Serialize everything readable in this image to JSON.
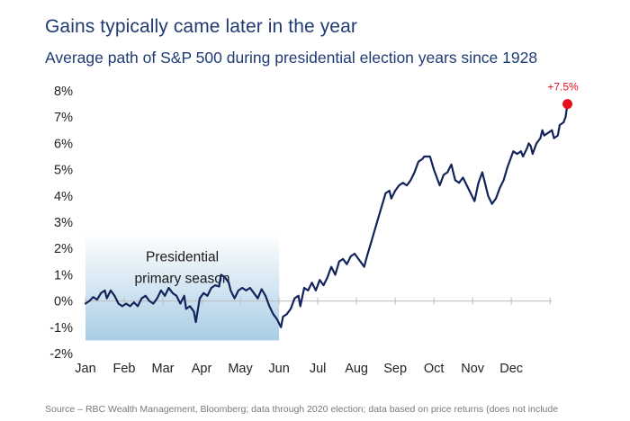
{
  "title": "Gains typically came later in the year",
  "subtitle": "Average path of S&P 500 during presidential election years since 1928",
  "source": "Source – RBC Wealth Management, Bloomberg; data through 2020 election; data based on price returns (does not include",
  "colors": {
    "line": "#13235b",
    "end_marker": "#e8101c",
    "end_label": "#e8101c",
    "text": "#1f3b73",
    "axis_text": "#222222",
    "shade_top": "#ffffff",
    "shade_bottom": "#a9cde5",
    "zero_line": "#bbbbbb"
  },
  "chart_data": {
    "type": "line",
    "title": "Gains typically came later in the year",
    "subtitle": "Average path of S&P 500 during presidential election years since 1928",
    "xlabel": "",
    "ylabel": "",
    "x_range": [
      0,
      12
    ],
    "ylim": [
      -2,
      8
    ],
    "yticks": [
      -2,
      -1,
      0,
      1,
      2,
      3,
      4,
      5,
      6,
      7,
      8
    ],
    "ytick_labels": [
      "-2%",
      "-1%",
      "0%",
      "1%",
      "2%",
      "3%",
      "4%",
      "5%",
      "6%",
      "7%",
      "8%"
    ],
    "months": [
      "Jan",
      "Feb",
      "Mar",
      "Apr",
      "May",
      "Jun",
      "Jul",
      "Aug",
      "Sep",
      "Oct",
      "Nov",
      "Dec"
    ],
    "shaded_region": {
      "x_start": 0,
      "x_end": 5,
      "y_start": -1.5,
      "y_end": 2.6,
      "label_lines": [
        "Presidential",
        "primary season"
      ]
    },
    "end_point": {
      "x": 11.85,
      "y": 7.5,
      "label": "+7.5%"
    },
    "series": [
      {
        "name": "S&P 500 average path",
        "points": [
          [
            0,
            -0.1
          ],
          [
            0.1,
            0.0
          ],
          [
            0.2,
            0.15
          ],
          [
            0.3,
            0.05
          ],
          [
            0.4,
            0.3
          ],
          [
            0.5,
            0.4
          ],
          [
            0.55,
            0.1
          ],
          [
            0.65,
            0.4
          ],
          [
            0.75,
            0.2
          ],
          [
            0.85,
            -0.1
          ],
          [
            0.95,
            -0.2
          ],
          [
            1.05,
            -0.1
          ],
          [
            1.15,
            -0.2
          ],
          [
            1.25,
            -0.05
          ],
          [
            1.35,
            -0.2
          ],
          [
            1.45,
            0.1
          ],
          [
            1.55,
            0.2
          ],
          [
            1.65,
            0.0
          ],
          [
            1.75,
            -0.1
          ],
          [
            1.85,
            0.1
          ],
          [
            1.95,
            0.4
          ],
          [
            2.05,
            0.2
          ],
          [
            2.15,
            0.5
          ],
          [
            2.25,
            0.3
          ],
          [
            2.35,
            0.2
          ],
          [
            2.45,
            -0.1
          ],
          [
            2.55,
            0.2
          ],
          [
            2.6,
            -0.3
          ],
          [
            2.7,
            -0.2
          ],
          [
            2.8,
            -0.4
          ],
          [
            2.85,
            -0.8
          ],
          [
            2.95,
            0.1
          ],
          [
            3.05,
            0.3
          ],
          [
            3.15,
            0.2
          ],
          [
            3.25,
            0.5
          ],
          [
            3.35,
            0.6
          ],
          [
            3.45,
            0.55
          ],
          [
            3.5,
            1.0
          ],
          [
            3.6,
            0.9
          ],
          [
            3.7,
            0.7
          ],
          [
            3.75,
            0.4
          ],
          [
            3.85,
            0.1
          ],
          [
            3.95,
            0.4
          ],
          [
            4.05,
            0.5
          ],
          [
            4.15,
            0.4
          ],
          [
            4.25,
            0.5
          ],
          [
            4.35,
            0.3
          ],
          [
            4.45,
            0.1
          ],
          [
            4.55,
            0.45
          ],
          [
            4.65,
            0.2
          ],
          [
            4.75,
            -0.2
          ],
          [
            4.85,
            -0.5
          ],
          [
            4.95,
            -0.7
          ],
          [
            5.05,
            -1.0
          ],
          [
            5.1,
            -0.6
          ],
          [
            5.2,
            -0.5
          ],
          [
            5.3,
            -0.3
          ],
          [
            5.4,
            0.1
          ],
          [
            5.5,
            0.2
          ],
          [
            5.55,
            -0.2
          ],
          [
            5.65,
            0.5
          ],
          [
            5.75,
            0.4
          ],
          [
            5.85,
            0.7
          ],
          [
            5.95,
            0.4
          ],
          [
            6.05,
            0.8
          ],
          [
            6.15,
            0.6
          ],
          [
            6.25,
            0.9
          ],
          [
            6.35,
            1.3
          ],
          [
            6.45,
            1.0
          ],
          [
            6.55,
            1.5
          ],
          [
            6.65,
            1.6
          ],
          [
            6.75,
            1.4
          ],
          [
            6.85,
            1.7
          ],
          [
            6.95,
            1.8
          ],
          [
            7.05,
            1.6
          ],
          [
            7.15,
            1.4
          ],
          [
            7.2,
            1.3
          ],
          [
            7.25,
            1.6
          ],
          [
            7.35,
            2.1
          ],
          [
            7.45,
            2.6
          ],
          [
            7.55,
            3.1
          ],
          [
            7.65,
            3.6
          ],
          [
            7.75,
            4.1
          ],
          [
            7.85,
            4.2
          ],
          [
            7.9,
            3.9
          ],
          [
            8.0,
            4.2
          ],
          [
            8.1,
            4.4
          ],
          [
            8.2,
            4.5
          ],
          [
            8.3,
            4.4
          ],
          [
            8.4,
            4.6
          ],
          [
            8.5,
            4.9
          ],
          [
            8.6,
            5.3
          ],
          [
            8.7,
            5.4
          ],
          [
            8.75,
            5.5
          ],
          [
            8.8,
            5.5
          ],
          [
            8.9,
            5.5
          ],
          [
            9.0,
            5.0
          ],
          [
            9.05,
            4.8
          ],
          [
            9.1,
            4.6
          ],
          [
            9.15,
            4.4
          ],
          [
            9.25,
            4.8
          ],
          [
            9.35,
            4.9
          ],
          [
            9.45,
            5.2
          ],
          [
            9.5,
            4.9
          ],
          [
            9.55,
            4.6
          ],
          [
            9.65,
            4.5
          ],
          [
            9.75,
            4.7
          ],
          [
            9.85,
            4.4
          ],
          [
            9.95,
            4.1
          ],
          [
            10.05,
            3.8
          ],
          [
            10.15,
            4.5
          ],
          [
            10.25,
            4.9
          ],
          [
            10.3,
            4.6
          ],
          [
            10.4,
            4.0
          ],
          [
            10.5,
            3.7
          ],
          [
            10.6,
            3.9
          ],
          [
            10.7,
            4.3
          ],
          [
            10.8,
            4.6
          ],
          [
            10.9,
            5.1
          ],
          [
            11.0,
            5.5
          ],
          [
            11.05,
            5.7
          ],
          [
            11.15,
            5.6
          ],
          [
            11.25,
            5.7
          ],
          [
            11.3,
            5.5
          ],
          [
            11.4,
            5.8
          ],
          [
            11.45,
            6.0
          ],
          [
            11.5,
            5.9
          ],
          [
            11.55,
            5.6
          ],
          [
            11.65,
            6.0
          ],
          [
            11.75,
            6.2
          ],
          [
            11.8,
            6.5
          ],
          [
            11.85,
            6.3
          ],
          [
            11.95,
            6.4
          ],
          [
            12.05,
            6.5
          ],
          [
            12.1,
            6.2
          ],
          [
            12.2,
            6.3
          ],
          [
            12.25,
            6.7
          ],
          [
            12.35,
            6.8
          ],
          [
            12.4,
            7.0
          ],
          [
            12.45,
            7.5
          ]
        ]
      }
    ]
  }
}
